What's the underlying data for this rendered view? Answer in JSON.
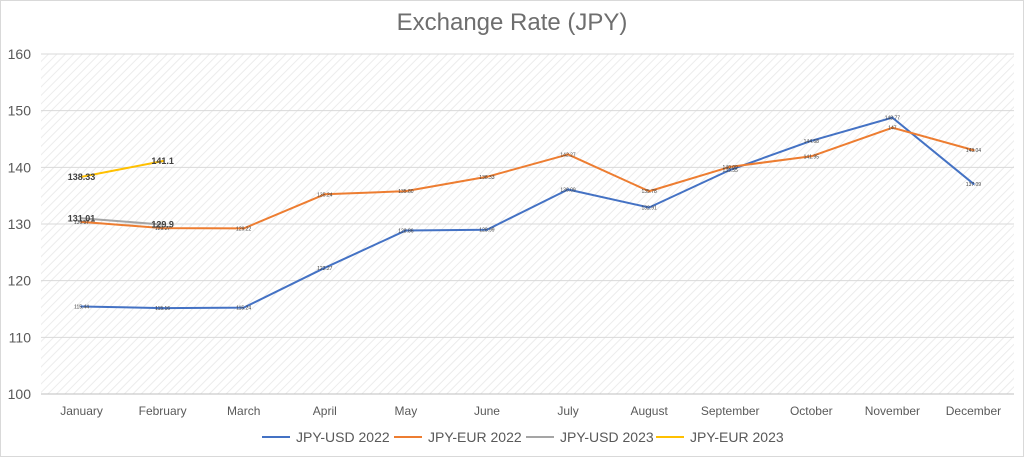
{
  "chart_data": {
    "type": "line",
    "title": "Exchange Rate (JPY)",
    "xlabel": "",
    "ylabel": "",
    "ylim": [
      100,
      160
    ],
    "yticks": [
      100,
      110,
      120,
      130,
      140,
      150,
      160
    ],
    "grid": "horizontal",
    "legend_position": "bottom",
    "categories": [
      "January",
      "February",
      "March",
      "April",
      "May",
      "June",
      "July",
      "August",
      "September",
      "October",
      "November",
      "December"
    ],
    "series": [
      {
        "name": "JPY-USD 2022",
        "color": "#4472c4",
        "values": [
          115.44,
          115.16,
          115.24,
          122.27,
          128.86,
          128.99,
          136.09,
          132.91,
          139.55,
          144.68,
          148.77,
          137.09
        ],
        "labels": [
          "115.44",
          "115.16",
          "115.24",
          "122.27",
          "128.86",
          "128.99",
          "136.09",
          "132.91",
          "139.55",
          "144.68",
          "148.77",
          "137.09"
        ],
        "label_style": "small"
      },
      {
        "name": "JPY-EUR 2022",
        "color": "#ed7d31",
        "values": [
          130.37,
          129.27,
          129.22,
          135.24,
          135.8,
          138.33,
          142.27,
          135.78,
          140.09,
          141.95,
          147.0,
          143.04
        ],
        "labels": [
          "130.37",
          "129.27",
          "129.22",
          "135.24",
          "135.80",
          "138.33",
          "142.27",
          "135.78",
          "140.09",
          "141.95",
          "147",
          "143.04"
        ],
        "label_style": "small"
      },
      {
        "name": "JPY-USD 2023",
        "color": "#a5a5a5",
        "values": [
          131.01,
          129.9,
          null,
          null,
          null,
          null,
          null,
          null,
          null,
          null,
          null,
          null
        ],
        "labels": [
          "131.01",
          "129.9"
        ],
        "label_style": "big"
      },
      {
        "name": "JPY-EUR 2023",
        "color": "#ffc000",
        "values": [
          138.33,
          141.1,
          null,
          null,
          null,
          null,
          null,
          null,
          null,
          null,
          null,
          null
        ],
        "labels": [
          "138.33",
          "141.1"
        ],
        "label_style": "big"
      }
    ]
  }
}
